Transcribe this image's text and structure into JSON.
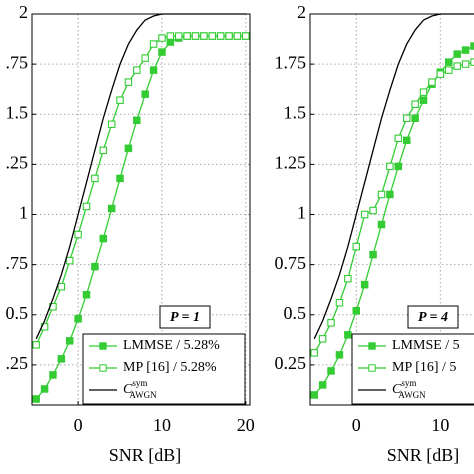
{
  "chart_data": [
    {
      "type": "line",
      "annotation": "P = 1",
      "xlabel": "SNR [dB]",
      "xlim": [
        -5.5,
        20.5
      ],
      "xticks": [
        0,
        10,
        20
      ],
      "ylim": [
        0.05,
        2
      ],
      "yticks": [
        {
          "value": 0.25,
          "label": ".25"
        },
        {
          "value": 0.5,
          "label": "0.5"
        },
        {
          "value": 0.75,
          "label": ".75"
        },
        1,
        {
          "value": 1.25,
          "label": ".25"
        },
        1.5,
        {
          "value": 1.75,
          "label": ".75"
        },
        2
      ],
      "grid": true,
      "x": [
        -5,
        -4,
        -3,
        -2,
        -1,
        0,
        1,
        2,
        3,
        4,
        5,
        6,
        7,
        8,
        9,
        10,
        11,
        12,
        13,
        14,
        15,
        16,
        17,
        18,
        19,
        20
      ],
      "series": [
        {
          "name": "LMMSE / 5.28%",
          "color": "#33cc33",
          "marker": "filled",
          "values": [
            0.08,
            0.13,
            0.2,
            0.28,
            0.37,
            0.48,
            0.6,
            0.74,
            0.88,
            1.03,
            1.18,
            1.33,
            1.47,
            1.6,
            1.72,
            1.81,
            1.86,
            1.88,
            1.89,
            1.89,
            1.89,
            1.89,
            1.89,
            1.89,
            1.89,
            1.89
          ]
        },
        {
          "name": "MP [16] / 5.28%",
          "color": "#33cc33",
          "marker": "open",
          "values": [
            0.35,
            0.44,
            0.54,
            0.64,
            0.77,
            0.9,
            1.04,
            1.18,
            1.32,
            1.45,
            1.57,
            1.66,
            1.72,
            1.78,
            1.85,
            1.88,
            1.89,
            1.89,
            1.89,
            1.89,
            1.89,
            1.89,
            1.89,
            1.89,
            1.89,
            1.89
          ]
        },
        {
          "name": "C",
          "name_sup": "sym",
          "name_sub": "AWGN",
          "color": "#000000",
          "marker": "none",
          "values": [
            0.38,
            0.47,
            0.58,
            0.7,
            0.84,
            1.0,
            1.16,
            1.32,
            1.48,
            1.62,
            1.75,
            1.85,
            1.92,
            1.97,
            1.99,
            2,
            2,
            2,
            2,
            2,
            2,
            2,
            2,
            2,
            2,
            2
          ]
        }
      ]
    },
    {
      "type": "line",
      "annotation": "P = 4",
      "xlabel": "SNR [dB]",
      "xlim": [
        -5.5,
        14
      ],
      "xticks": [
        0,
        10
      ],
      "ylim": [
        0.05,
        2
      ],
      "yticks": [
        0.25,
        0.5,
        0.75,
        1,
        1.25,
        1.5,
        1.75,
        2
      ],
      "grid": true,
      "x": [
        -5,
        -4,
        -3,
        -2,
        -1,
        0,
        1,
        2,
        3,
        4,
        5,
        6,
        7,
        8,
        9,
        10,
        11,
        12,
        13,
        14
      ],
      "series": [
        {
          "name": "LMMSE / 5",
          "color": "#33cc33",
          "marker": "filled",
          "values": [
            0.1,
            0.15,
            0.22,
            0.3,
            0.4,
            0.52,
            0.65,
            0.8,
            0.95,
            1.1,
            1.24,
            1.37,
            1.48,
            1.57,
            1.65,
            1.71,
            1.76,
            1.8,
            1.82,
            1.84
          ]
        },
        {
          "name": "MP [16] / 5",
          "color": "#33cc33",
          "marker": "open",
          "values": [
            0.31,
            0.38,
            0.46,
            0.56,
            0.68,
            0.84,
            1.0,
            1.02,
            1.1,
            1.24,
            1.38,
            1.48,
            1.55,
            1.61,
            1.66,
            1.7,
            1.72,
            1.74,
            1.75,
            1.76
          ]
        },
        {
          "name": "C",
          "name_sup": "sym",
          "name_sub": "AWGN",
          "color": "#000000",
          "marker": "none",
          "values": [
            0.38,
            0.47,
            0.58,
            0.7,
            0.84,
            1.0,
            1.16,
            1.32,
            1.48,
            1.62,
            1.75,
            1.85,
            1.92,
            1.97,
            1.99,
            2,
            2,
            2,
            2,
            2
          ]
        }
      ]
    }
  ]
}
